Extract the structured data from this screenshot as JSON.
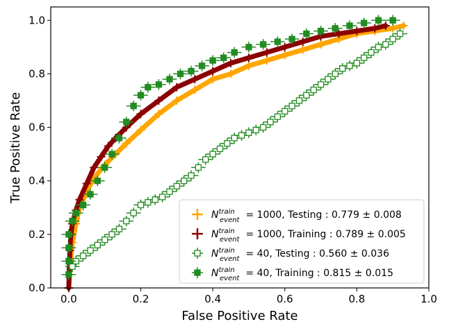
{
  "chart_data": {
    "type": "scatter",
    "xlabel": "False Positive Rate",
    "ylabel": "True Positive Rate",
    "xlim": [
      -0.05,
      1.0
    ],
    "ylim": [
      0.0,
      1.05
    ],
    "xticks": [
      "0.0",
      "0.2",
      "0.4",
      "0.6",
      "0.8",
      "1.0"
    ],
    "yticks": [
      "0.0",
      "0.2",
      "0.4",
      "0.6",
      "0.8",
      "1.0"
    ],
    "grid": false,
    "legend_position": "bottom-right",
    "series": [
      {
        "name_n": "N",
        "name_sup": "train",
        "name_sub": "event",
        "name_rest": " = 1000, Testing : 0.779 ± 0.008",
        "color": "#ffa500",
        "marker": "plus",
        "x": [
          0.0,
          0.005,
          0.01,
          0.02,
          0.03,
          0.05,
          0.07,
          0.1,
          0.13,
          0.16,
          0.2,
          0.25,
          0.3,
          0.35,
          0.4,
          0.45,
          0.5,
          0.55,
          0.6,
          0.65,
          0.7,
          0.75,
          0.8,
          0.85,
          0.9,
          0.93
        ],
        "y": [
          0.0,
          0.1,
          0.17,
          0.24,
          0.3,
          0.36,
          0.41,
          0.46,
          0.5,
          0.54,
          0.59,
          0.65,
          0.7,
          0.74,
          0.78,
          0.8,
          0.83,
          0.85,
          0.87,
          0.89,
          0.91,
          0.93,
          0.95,
          0.96,
          0.97,
          0.98
        ]
      },
      {
        "name_n": "N",
        "name_sup": "train",
        "name_sub": "event",
        "name_rest": " = 1000, Training : 0.789 ± 0.005",
        "color": "#8b0000",
        "marker": "plus",
        "x": [
          0.0,
          0.003,
          0.006,
          0.01,
          0.02,
          0.03,
          0.05,
          0.07,
          0.09,
          0.11,
          0.13,
          0.16,
          0.2,
          0.25,
          0.3,
          0.35,
          0.4,
          0.45,
          0.5,
          0.55,
          0.6,
          0.65,
          0.7,
          0.75,
          0.8,
          0.85,
          0.88
        ],
        "y": [
          0.0,
          0.14,
          0.2,
          0.24,
          0.29,
          0.33,
          0.39,
          0.45,
          0.49,
          0.53,
          0.56,
          0.6,
          0.65,
          0.7,
          0.75,
          0.78,
          0.81,
          0.84,
          0.86,
          0.88,
          0.9,
          0.92,
          0.94,
          0.95,
          0.96,
          0.97,
          0.98
        ]
      },
      {
        "name_n": "N",
        "name_sup": "train",
        "name_sub": "event",
        "name_rest": " = 40, Testing : 0.560 ± 0.036",
        "color": "#228b22",
        "marker": "open-square",
        "x": [
          0.01,
          0.02,
          0.04,
          0.06,
          0.08,
          0.1,
          0.12,
          0.14,
          0.16,
          0.18,
          0.2,
          0.22,
          0.24,
          0.26,
          0.28,
          0.3,
          0.32,
          0.34,
          0.36,
          0.38,
          0.4,
          0.42,
          0.44,
          0.46,
          0.48,
          0.5,
          0.52,
          0.54,
          0.56,
          0.58,
          0.6,
          0.62,
          0.64,
          0.66,
          0.68,
          0.7,
          0.72,
          0.74,
          0.76,
          0.78,
          0.8,
          0.82,
          0.84,
          0.86,
          0.88,
          0.9,
          0.92
        ],
        "y": [
          0.08,
          0.1,
          0.12,
          0.14,
          0.16,
          0.18,
          0.2,
          0.22,
          0.25,
          0.28,
          0.31,
          0.32,
          0.33,
          0.34,
          0.36,
          0.38,
          0.4,
          0.42,
          0.45,
          0.48,
          0.5,
          0.52,
          0.54,
          0.56,
          0.57,
          0.58,
          0.59,
          0.6,
          0.62,
          0.64,
          0.66,
          0.68,
          0.7,
          0.72,
          0.74,
          0.76,
          0.78,
          0.8,
          0.82,
          0.83,
          0.84,
          0.86,
          0.88,
          0.9,
          0.91,
          0.93,
          0.95
        ]
      },
      {
        "name_n": "N",
        "name_sup": "train",
        "name_sub": "event",
        "name_rest": " = 40, Training : 0.815 ± 0.015",
        "color": "#228b22",
        "marker": "filled-square",
        "x": [
          0.0,
          0.0,
          0.0,
          0.0,
          0.01,
          0.02,
          0.04,
          0.06,
          0.08,
          0.1,
          0.12,
          0.14,
          0.16,
          0.18,
          0.2,
          0.22,
          0.25,
          0.28,
          0.31,
          0.34,
          0.37,
          0.4,
          0.43,
          0.46,
          0.5,
          0.54,
          0.58,
          0.62,
          0.66,
          0.7,
          0.74,
          0.78,
          0.82,
          0.86,
          0.9
        ],
        "y": [
          0.05,
          0.1,
          0.15,
          0.2,
          0.25,
          0.28,
          0.31,
          0.35,
          0.4,
          0.45,
          0.5,
          0.56,
          0.62,
          0.68,
          0.72,
          0.75,
          0.76,
          0.78,
          0.8,
          0.81,
          0.83,
          0.85,
          0.86,
          0.88,
          0.9,
          0.91,
          0.92,
          0.93,
          0.95,
          0.96,
          0.97,
          0.98,
          0.99,
          1.0,
          1.0
        ]
      }
    ]
  }
}
